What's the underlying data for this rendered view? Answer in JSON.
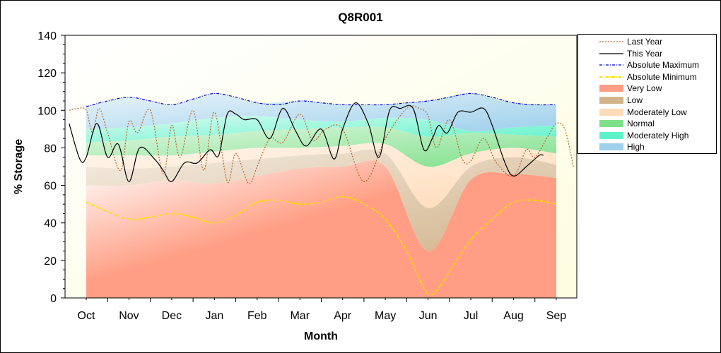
{
  "chart_data": {
    "type": "area",
    "title": "Q8R001",
    "xlabel": "Month",
    "ylabel": "% Storage",
    "ylim": [
      0,
      140
    ],
    "yticks": [
      0,
      20,
      40,
      60,
      80,
      100,
      120,
      140
    ],
    "categories": [
      "Oct",
      "Nov",
      "Dec",
      "Jan",
      "Feb",
      "Mar",
      "Apr",
      "May",
      "Jun",
      "Jul",
      "Aug",
      "Sep"
    ],
    "grid": false,
    "legend_position": "right",
    "bands": [
      {
        "name": "Very Low",
        "color": "#ff9e84",
        "lower": [
          0,
          0,
          0,
          0,
          0,
          0,
          0,
          0,
          0,
          0,
          0,
          0
        ],
        "upper": [
          60,
          60,
          63,
          61,
          65,
          69,
          70,
          70,
          25,
          63,
          66,
          64
        ]
      },
      {
        "name": "Low",
        "color": "#d2b48c",
        "lower": [
          60,
          60,
          63,
          61,
          65,
          69,
          70,
          70,
          25,
          63,
          66,
          64
        ],
        "upper": [
          70,
          69,
          70,
          72,
          74,
          76,
          77,
          77,
          48,
          70,
          75,
          71
        ]
      },
      {
        "name": "Moderately Low",
        "color": "#ffdbb8",
        "lower": [
          70,
          69,
          70,
          72,
          74,
          76,
          77,
          77,
          48,
          70,
          75,
          71
        ],
        "upper": [
          76,
          76,
          76,
          78,
          80,
          80,
          81,
          82,
          70,
          77,
          80,
          77
        ]
      },
      {
        "name": "Normal",
        "color": "#7fe08a",
        "lower": [
          76,
          76,
          76,
          78,
          80,
          80,
          81,
          82,
          70,
          77,
          80,
          77
        ],
        "upper": [
          83,
          84,
          86,
          87,
          89,
          90,
          91,
          91,
          86,
          88,
          87,
          86
        ]
      },
      {
        "name": "Moderately High",
        "color": "#5ff2c8",
        "lower": [
          83,
          84,
          86,
          87,
          89,
          90,
          91,
          91,
          86,
          88,
          87,
          86
        ],
        "upper": [
          90,
          91,
          93,
          96,
          97,
          95,
          94,
          96,
          95,
          89,
          91,
          92
        ]
      },
      {
        "name": "High",
        "color": "#9fd0ec",
        "lower": [
          90,
          91,
          93,
          96,
          97,
          95,
          94,
          96,
          95,
          89,
          91,
          92
        ],
        "upper": [
          102,
          107,
          103,
          109,
          104,
          105,
          103,
          103,
          105,
          109,
          104,
          103
        ]
      }
    ],
    "series": [
      {
        "name": "Last Year",
        "color": "#b5652e",
        "style": "dotted",
        "x": [
          -0.4,
          -0.2,
          0.0,
          0.15,
          0.3,
          0.5,
          0.8,
          1.0,
          1.2,
          1.5,
          1.8,
          2.0,
          2.2,
          2.5,
          2.75,
          3.0,
          3.3,
          3.5,
          3.8,
          4.0,
          4.3,
          4.6,
          5.0,
          5.3,
          5.6,
          6.0,
          6.5,
          7.0,
          7.5,
          7.8,
          8.0,
          8.2,
          8.5,
          8.8,
          9.0,
          9.3,
          9.6,
          10.0,
          10.3,
          10.5,
          10.8,
          11.0,
          11.2,
          11.4
        ],
        "y": [
          100,
          101,
          100,
          88,
          101,
          88,
          68,
          94,
          88,
          100,
          66,
          92,
          75,
          100,
          68,
          99,
          62,
          77,
          61,
          70,
          85,
          83,
          98,
          84,
          90,
          90,
          62,
          85,
          101,
          101,
          97,
          80,
          95,
          74,
          73,
          85,
          72,
          65,
          79,
          75,
          86,
          93,
          90,
          70
        ]
      },
      {
        "name": "This Year",
        "color": "#000000",
        "style": "solid",
        "x": [
          -0.4,
          -0.15,
          0.0,
          0.25,
          0.5,
          0.75,
          1.0,
          1.25,
          1.6,
          1.8,
          2.0,
          2.3,
          2.6,
          2.9,
          3.1,
          3.3,
          3.5,
          3.7,
          4.0,
          4.3,
          4.6,
          4.9,
          5.15,
          5.5,
          5.8,
          6.0,
          6.3,
          6.6,
          6.85,
          7.1,
          7.35,
          7.65,
          7.9,
          8.1,
          8.25,
          8.45,
          8.7,
          9.0,
          9.3,
          9.5,
          9.8,
          10.0,
          10.3,
          10.6,
          10.7
        ],
        "y": [
          93,
          74,
          75,
          93,
          75,
          82,
          62,
          80,
          74,
          68,
          62,
          72,
          72,
          79,
          76,
          98,
          98,
          95,
          95,
          85,
          101,
          89,
          81,
          90,
          74,
          90,
          104,
          93,
          75,
          100,
          101,
          101,
          79,
          85,
          92,
          88,
          99,
          99,
          101,
          92,
          72,
          65,
          70,
          76,
          76
        ]
      },
      {
        "name": "Absolute Maximum",
        "color": "#0000cc",
        "style": "dashdot",
        "x": [
          0,
          0.5,
          1.0,
          1.5,
          2.0,
          2.5,
          3.0,
          3.5,
          4.0,
          4.5,
          5.0,
          5.5,
          6.0,
          6.5,
          7.0,
          7.5,
          8.0,
          8.5,
          9.0,
          9.5,
          10.0,
          10.5,
          11.0
        ],
        "y": [
          102,
          105,
          107,
          105,
          103,
          106,
          109,
          107,
          104,
          103,
          105,
          104,
          103,
          103,
          103,
          104,
          105,
          107,
          109,
          107,
          104,
          103,
          103
        ]
      },
      {
        "name": "Absolute Minimum",
        "color": "#ffdd00",
        "style": "dashdot",
        "x": [
          0,
          0.5,
          1.0,
          1.5,
          2.0,
          2.5,
          3.0,
          3.5,
          4.0,
          4.5,
          5.0,
          5.5,
          6.0,
          6.5,
          7.0,
          7.5,
          7.8,
          8.0,
          8.2,
          8.5,
          9.0,
          9.5,
          10.0,
          10.5,
          11.0
        ],
        "y": [
          51,
          46,
          42,
          43,
          45,
          43,
          40,
          44,
          51,
          52,
          50,
          51,
          54,
          50,
          42,
          25,
          10,
          2,
          4,
          14,
          31,
          42,
          51,
          52,
          50
        ]
      }
    ],
    "legend": [
      {
        "label": "Last Year",
        "kind": "line",
        "color": "#b5652e",
        "style": "dotted"
      },
      {
        "label": "This Year",
        "kind": "line",
        "color": "#000000",
        "style": "solid"
      },
      {
        "label": "Absolute Maximum",
        "kind": "line",
        "color": "#0000cc",
        "style": "dashdot"
      },
      {
        "label": "Absolute Minimum",
        "kind": "line",
        "color": "#ffdd00",
        "style": "dashdot"
      },
      {
        "label": "Very Low",
        "kind": "fill",
        "color": "#ff9e84"
      },
      {
        "label": "Low",
        "kind": "fill",
        "color": "#d2b48c"
      },
      {
        "label": "Moderately Low",
        "kind": "fill",
        "color": "#ffdbb8"
      },
      {
        "label": "Normal",
        "kind": "fill",
        "color": "#7fe08a"
      },
      {
        "label": "Moderately High",
        "kind": "fill",
        "color": "#5ff2c8"
      },
      {
        "label": "High",
        "kind": "fill",
        "color": "#9fd0ec"
      }
    ],
    "colors": {
      "plot_background": "#fdfde6",
      "border": "#000000"
    }
  }
}
